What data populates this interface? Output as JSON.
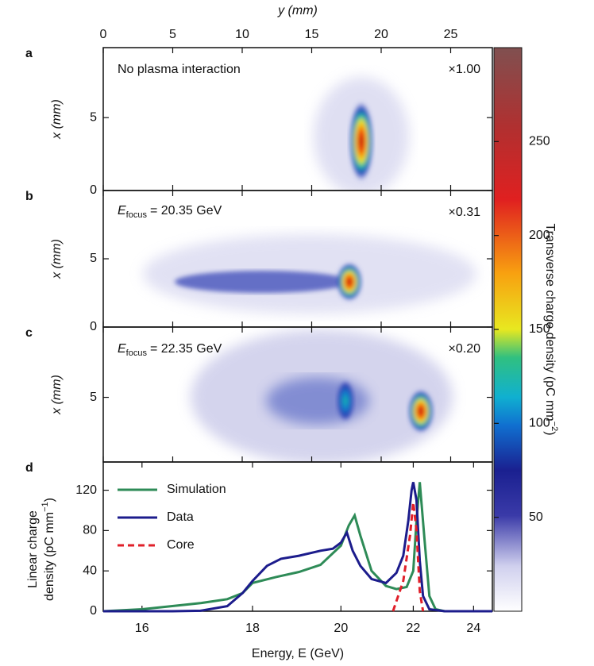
{
  "chart_data": [
    {
      "type": "heatmap",
      "panel_label": "a",
      "annotation": "No plasma interaction",
      "scale_label": "×1.00",
      "xlabel": "y (mm)",
      "xlim": [
        0,
        28
      ],
      "xticks": [
        0,
        5,
        10,
        15,
        20,
        25
      ],
      "ylabel": "x (mm)",
      "ylim": [
        0,
        9.8
      ],
      "yticks": [
        0,
        5
      ],
      "colorbar": {
        "label": "Transverse charge density (pC mm",
        "label_sup": "−2",
        "label_end": ")",
        "clim": [
          0,
          300
        ],
        "ticks": [
          50,
          100,
          150,
          200,
          250
        ]
      }
    },
    {
      "type": "heatmap",
      "panel_label": "b",
      "annotation": {
        "symbol": "E",
        "subscript": "focus",
        "text": "= 20.35 GeV"
      },
      "scale_label": "×0.31",
      "ylabel": "x (mm)",
      "ylim": [
        0,
        10
      ],
      "yticks": [
        0,
        5
      ]
    },
    {
      "type": "heatmap",
      "panel_label": "c",
      "annotation": {
        "symbol": "E",
        "subscript": "focus",
        "text": "= 22.35 GeV"
      },
      "scale_label": "×0.20",
      "ylabel": "x (mm)",
      "ylim": [
        0.4,
        10
      ],
      "yticks": [
        5
      ]
    },
    {
      "type": "line",
      "panel_label": "d",
      "xlabel": "Energy, E (GeV)",
      "xscale": "reciprocal",
      "xlim": [
        15.4,
        24.7
      ],
      "xticks": [
        16,
        18,
        20,
        22,
        24
      ],
      "ylabel_lines": [
        "Linear charge",
        "density (pC mm"
      ],
      "ylabel_sup": "−1",
      "ylabel_end": ")",
      "ylim": [
        0,
        148
      ],
      "yticks": [
        0,
        40,
        80,
        120
      ],
      "series": [
        {
          "name": "Simulation",
          "color": "#2e8b57",
          "dash": false,
          "x": [
            15.4,
            16,
            17,
            17.5,
            17.8,
            18,
            18.5,
            19,
            19.5,
            20,
            20.2,
            20.35,
            20.5,
            20.8,
            21.2,
            21.5,
            21.8,
            22,
            22.1,
            22.2,
            22.35,
            22.5,
            22.7,
            23,
            24.7
          ],
          "values": [
            0,
            2,
            8,
            12,
            18,
            28,
            34,
            39,
            46,
            65,
            85,
            95,
            75,
            40,
            25,
            22,
            24,
            40,
            90,
            128,
            70,
            15,
            2,
            0,
            0
          ]
        },
        {
          "name": "Data",
          "color": "#1c1c8c",
          "dash": false,
          "x": [
            15.4,
            16.5,
            17,
            17.5,
            17.8,
            18,
            18.3,
            18.6,
            19,
            19.5,
            19.8,
            20,
            20.15,
            20.3,
            20.5,
            20.8,
            21.2,
            21.5,
            21.7,
            21.85,
            21.95,
            22,
            22.1,
            22.2,
            22.3,
            22.5,
            23,
            24.7
          ],
          "values": [
            0,
            0,
            0.5,
            5,
            18,
            30,
            45,
            52,
            55,
            60,
            62,
            68,
            78,
            60,
            45,
            32,
            28,
            38,
            55,
            90,
            120,
            128,
            110,
            50,
            15,
            2,
            0,
            0
          ]
        },
        {
          "name": "Core",
          "color": "#e0202a",
          "dash": true,
          "x": [
            21.4,
            21.7,
            21.9,
            22,
            22.1,
            22.2,
            22.3
          ],
          "values": [
            0,
            30,
            75,
            108,
            80,
            20,
            0
          ]
        }
      ]
    }
  ]
}
